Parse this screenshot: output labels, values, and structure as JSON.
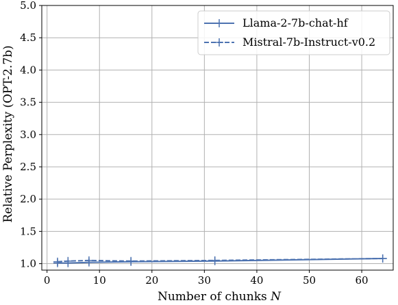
{
  "chart_data": {
    "type": "line",
    "xlabel": "Number of chunks",
    "xlabel_var": "N",
    "ylabel": "Relative Perplexity (OPT-2.7b)",
    "xlim": [
      -1,
      66
    ],
    "ylim": [
      0.9,
      5.0
    ],
    "xticks": [
      0,
      10,
      20,
      30,
      40,
      50,
      60
    ],
    "yticks": [
      1.0,
      1.5,
      2.0,
      2.5,
      3.0,
      3.5,
      4.0,
      4.5,
      5.0
    ],
    "xtick_labels": [
      "0",
      "10",
      "20",
      "30",
      "40",
      "50",
      "60"
    ],
    "ytick_labels": [
      "1.0",
      "1.5",
      "2.0",
      "2.5",
      "3.0",
      "3.5",
      "4.0",
      "4.5",
      "5.0"
    ],
    "grid": true,
    "legend_position": "top-right",
    "series": [
      {
        "name": "Llama-2-7b-chat-hf",
        "style": "solid",
        "color": "#4c72b0",
        "x": [
          2,
          4,
          8,
          16,
          32,
          64
        ],
        "y": [
          1.01,
          1.01,
          1.02,
          1.03,
          1.04,
          1.08
        ]
      },
      {
        "name": "Mistral-7b-Instruct-v0.2",
        "style": "dashed",
        "color": "#4c72b0",
        "x": [
          2,
          4,
          8,
          16,
          32,
          64
        ],
        "y": [
          1.03,
          1.04,
          1.05,
          1.04,
          1.05,
          1.08
        ]
      }
    ]
  }
}
